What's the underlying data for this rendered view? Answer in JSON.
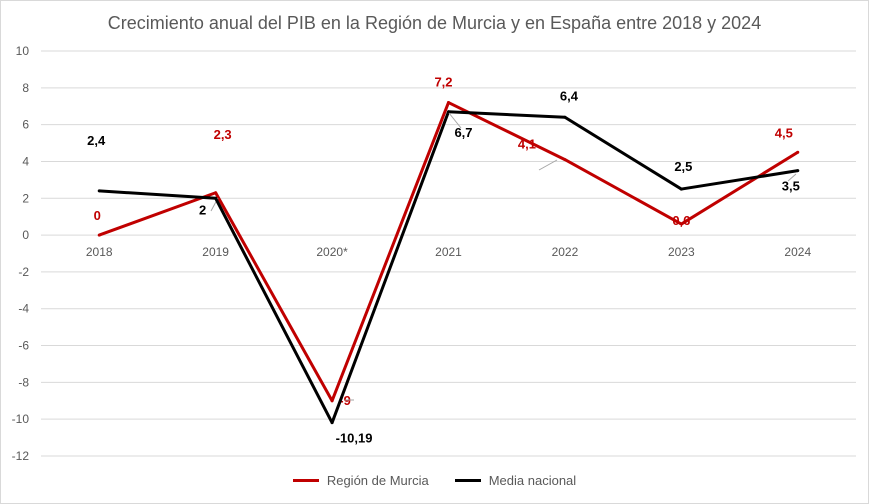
{
  "chart_data": {
    "type": "line",
    "title": "Crecimiento anual del PIB en la Región de Murcia y en España entre 2018 y 2024",
    "categories": [
      "2018",
      "2019",
      "2020*",
      "2021",
      "2022",
      "2023",
      "2024"
    ],
    "ylim": [
      -12,
      10
    ],
    "yticks": [
      -12,
      -10,
      -8,
      -6,
      -4,
      -2,
      0,
      2,
      4,
      6,
      8,
      10
    ],
    "grid": true,
    "legend_position": "bottom",
    "series": [
      {
        "name": "Región de Murcia",
        "color": "#c00000",
        "values": [
          0,
          2.3,
          -9,
          7.2,
          4.1,
          0.6,
          4.5
        ],
        "labels": [
          "0",
          "2,3",
          "-9",
          "7,2",
          "4,1",
          "0,6",
          "4,5"
        ]
      },
      {
        "name": "Media nacional",
        "color": "#000000",
        "values": [
          2.4,
          2,
          -10.19,
          6.7,
          6.4,
          2.5,
          3.5
        ],
        "labels": [
          "2,4",
          "2",
          "-10,19",
          "6,7",
          "6,4",
          "2,5",
          "3,5"
        ]
      }
    ]
  }
}
